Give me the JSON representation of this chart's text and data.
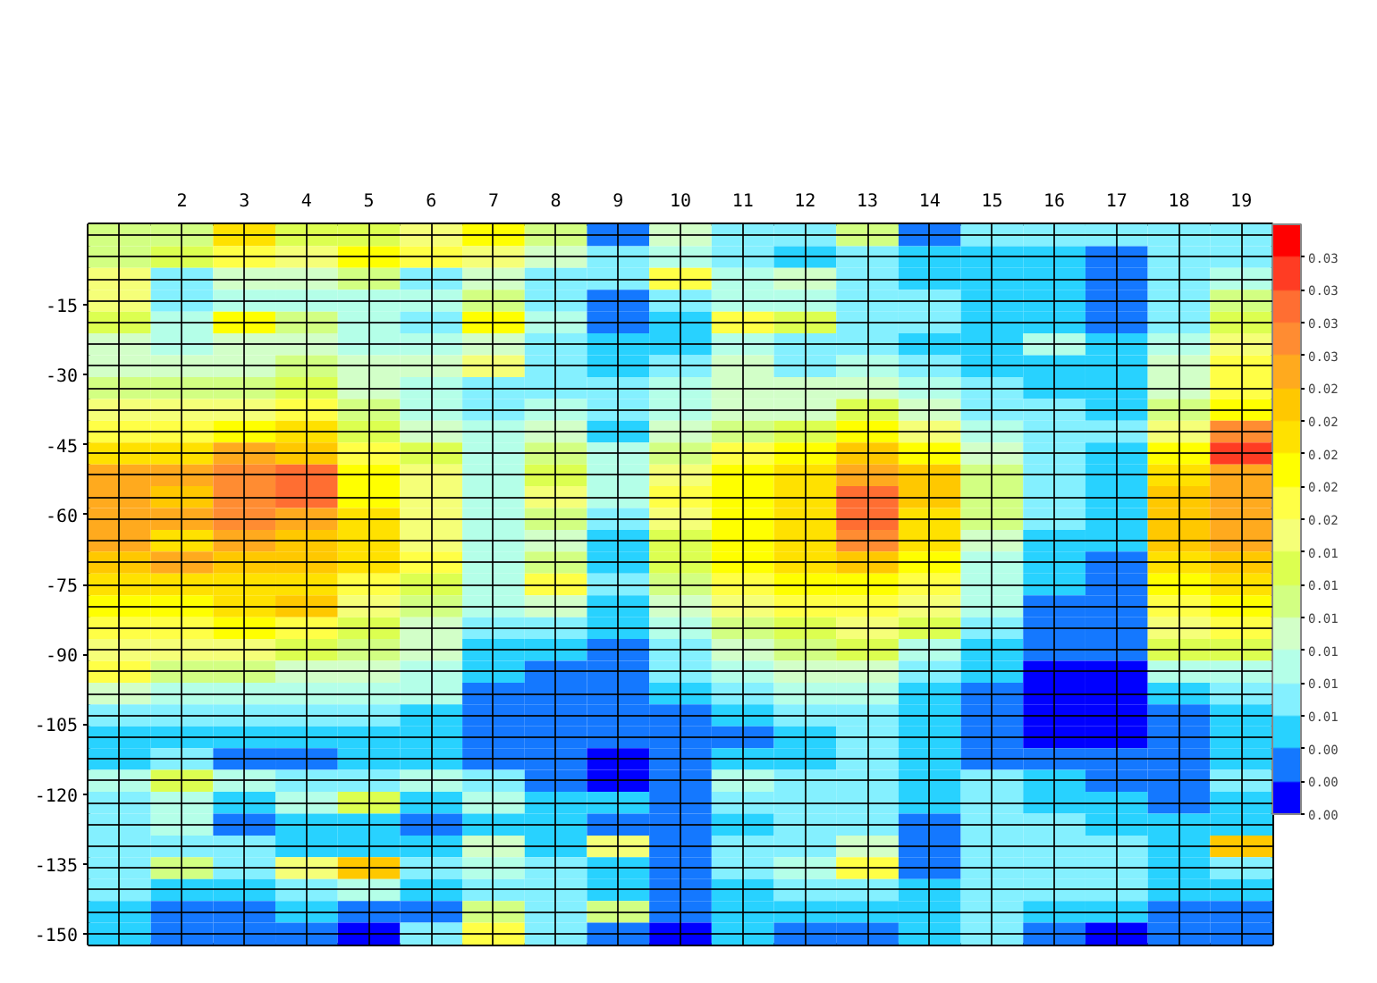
{
  "chart_data": {
    "type": "heatmap",
    "x": [
      1,
      2,
      3,
      4,
      5,
      6,
      7,
      8,
      9,
      10,
      11,
      12,
      13,
      14,
      15,
      16,
      17,
      18,
      19
    ],
    "xlim": [
      0.5,
      19.5
    ],
    "xticks": [
      2,
      3,
      4,
      5,
      6,
      7,
      8,
      9,
      10,
      11,
      12,
      13,
      14,
      15,
      16,
      17,
      18,
      19
    ],
    "ylim": [
      -152.3,
      2.3
    ],
    "yticks": [
      -15,
      -30,
      -45,
      -60,
      -75,
      -90,
      -105,
      -120,
      -135,
      -150
    ],
    "grid": true,
    "colors": [
      "#0000ff",
      "#1478ff",
      "#28d2ff",
      "#84f0ff",
      "#b4ffe8",
      "#d2ffc8",
      "#d2ff82",
      "#dcff50",
      "#f5ff78",
      "#ffff46",
      "#ffff00",
      "#ffe100",
      "#ffc800",
      "#ffaa1e",
      "#ff8c32",
      "#ff6e32",
      "#ff3c23",
      "#ff0000"
    ],
    "clim": [
      0.0005,
      0.0329
    ],
    "cticks": [
      {
        "value": 0.0005,
        "label": "0.00"
      },
      {
        "value": 0.0023,
        "label": "0.00"
      },
      {
        "value": 0.0041,
        "label": "0.00"
      },
      {
        "value": 0.0059,
        "label": "0.01"
      },
      {
        "value": 0.0077,
        "label": "0.01"
      },
      {
        "value": 0.0095,
        "label": "0.01"
      },
      {
        "value": 0.0113,
        "label": "0.01"
      },
      {
        "value": 0.0131,
        "label": "0.01"
      },
      {
        "value": 0.0149,
        "label": "0.01"
      },
      {
        "value": 0.0167,
        "label": "0.02"
      },
      {
        "value": 0.0185,
        "label": "0.02"
      },
      {
        "value": 0.0203,
        "label": "0.02"
      },
      {
        "value": 0.0221,
        "label": "0.02"
      },
      {
        "value": 0.0239,
        "label": "0.02"
      },
      {
        "value": 0.0257,
        "label": "0.03"
      },
      {
        "value": 0.0275,
        "label": "0.03"
      },
      {
        "value": 0.0293,
        "label": "0.03"
      },
      {
        "value": 0.0311,
        "label": "0.03"
      }
    ],
    "cells": [
      [
        0.0122,
        0.0122,
        0.0212,
        0.014,
        0.014,
        0.0158,
        0.0194,
        0.0122,
        0.0032,
        0.0104,
        0.0068,
        0.0068,
        0.0122,
        0.0032,
        0.0068,
        0.0068,
        0.0068,
        0.0068,
        0.0068
      ],
      [
        0.0122,
        0.014,
        0.0176,
        0.0158,
        0.0194,
        0.0176,
        0.0158,
        0.0104,
        0.0068,
        0.0086,
        0.0068,
        0.005,
        0.0068,
        0.005,
        0.005,
        0.005,
        0.0032,
        0.0068,
        0.0068
      ],
      [
        0.0158,
        0.0068,
        0.0104,
        0.0104,
        0.0122,
        0.0068,
        0.0104,
        0.0068,
        0.0068,
        0.0176,
        0.0086,
        0.0104,
        0.0068,
        0.005,
        0.005,
        0.005,
        0.0032,
        0.0068,
        0.0086
      ],
      [
        0.0158,
        0.0068,
        0.0086,
        0.0086,
        0.0086,
        0.0086,
        0.0122,
        0.0068,
        0.0032,
        0.0068,
        0.0086,
        0.0086,
        0.0068,
        0.0068,
        0.005,
        0.005,
        0.0032,
        0.0068,
        0.0122
      ],
      [
        0.014,
        0.0086,
        0.0194,
        0.0122,
        0.0086,
        0.0068,
        0.0194,
        0.0086,
        0.0032,
        0.005,
        0.0176,
        0.014,
        0.0068,
        0.0068,
        0.005,
        0.005,
        0.0032,
        0.0068,
        0.014
      ],
      [
        0.0104,
        0.0086,
        0.0104,
        0.0104,
        0.0086,
        0.0086,
        0.0104,
        0.0068,
        0.005,
        0.005,
        0.0086,
        0.0068,
        0.0068,
        0.005,
        0.005,
        0.0086,
        0.005,
        0.0086,
        0.0158
      ],
      [
        0.0104,
        0.0104,
        0.0104,
        0.0122,
        0.0104,
        0.0104,
        0.0158,
        0.0068,
        0.005,
        0.0068,
        0.0104,
        0.0068,
        0.0086,
        0.0068,
        0.005,
        0.005,
        0.005,
        0.0104,
        0.0176
      ],
      [
        0.0122,
        0.0122,
        0.0122,
        0.014,
        0.0104,
        0.0086,
        0.0068,
        0.0068,
        0.0068,
        0.0086,
        0.0104,
        0.0104,
        0.0104,
        0.0086,
        0.0068,
        0.005,
        0.005,
        0.0104,
        0.0176
      ],
      [
        0.0158,
        0.0158,
        0.0158,
        0.0176,
        0.0122,
        0.0086,
        0.0068,
        0.0086,
        0.0068,
        0.0086,
        0.0104,
        0.0104,
        0.014,
        0.0104,
        0.0068,
        0.0068,
        0.005,
        0.0122,
        0.0194
      ],
      [
        0.0176,
        0.0176,
        0.0194,
        0.0212,
        0.014,
        0.0104,
        0.0086,
        0.0104,
        0.005,
        0.0104,
        0.0122,
        0.014,
        0.0194,
        0.0158,
        0.0086,
        0.0068,
        0.0068,
        0.0158,
        0.0266
      ],
      [
        0.0212,
        0.0212,
        0.0248,
        0.023,
        0.0176,
        0.014,
        0.0086,
        0.0122,
        0.0086,
        0.0122,
        0.0176,
        0.0194,
        0.023,
        0.0194,
        0.0104,
        0.0068,
        0.005,
        0.0194,
        0.0302
      ],
      [
        0.0248,
        0.0248,
        0.0266,
        0.0284,
        0.0194,
        0.0158,
        0.0086,
        0.014,
        0.0086,
        0.0158,
        0.0194,
        0.0212,
        0.0248,
        0.023,
        0.0122,
        0.0068,
        0.005,
        0.0212,
        0.0248
      ],
      [
        0.0248,
        0.023,
        0.0266,
        0.0284,
        0.0194,
        0.0158,
        0.0086,
        0.0158,
        0.0086,
        0.0176,
        0.0194,
        0.0212,
        0.0284,
        0.023,
        0.0122,
        0.0068,
        0.005,
        0.023,
        0.0248
      ],
      [
        0.0248,
        0.0248,
        0.0266,
        0.0248,
        0.0212,
        0.0158,
        0.0086,
        0.0122,
        0.0068,
        0.0158,
        0.0194,
        0.0212,
        0.0284,
        0.0212,
        0.0122,
        0.0068,
        0.005,
        0.023,
        0.0248
      ],
      [
        0.0248,
        0.0212,
        0.0248,
        0.023,
        0.0212,
        0.0158,
        0.0086,
        0.0104,
        0.005,
        0.014,
        0.0194,
        0.0212,
        0.0266,
        0.0212,
        0.0104,
        0.005,
        0.005,
        0.023,
        0.0248
      ],
      [
        0.023,
        0.0248,
        0.023,
        0.023,
        0.0212,
        0.0176,
        0.0086,
        0.0122,
        0.005,
        0.014,
        0.0194,
        0.0212,
        0.023,
        0.0194,
        0.0086,
        0.005,
        0.0032,
        0.0212,
        0.023
      ],
      [
        0.0212,
        0.0212,
        0.0212,
        0.0212,
        0.0176,
        0.014,
        0.0086,
        0.0176,
        0.0068,
        0.0122,
        0.0176,
        0.0194,
        0.0194,
        0.0176,
        0.0086,
        0.005,
        0.0032,
        0.0194,
        0.0212
      ],
      [
        0.0194,
        0.0194,
        0.0212,
        0.023,
        0.0158,
        0.0122,
        0.0086,
        0.0104,
        0.005,
        0.0104,
        0.0158,
        0.0176,
        0.0176,
        0.0158,
        0.0086,
        0.0032,
        0.0032,
        0.0176,
        0.0194
      ],
      [
        0.0176,
        0.0176,
        0.0194,
        0.0176,
        0.014,
        0.0104,
        0.0068,
        0.0068,
        0.005,
        0.0086,
        0.0122,
        0.014,
        0.0158,
        0.014,
        0.0068,
        0.0032,
        0.0032,
        0.0158,
        0.0176
      ],
      [
        0.0158,
        0.0158,
        0.0158,
        0.014,
        0.0122,
        0.0104,
        0.005,
        0.005,
        0.0032,
        0.0068,
        0.0104,
        0.0122,
        0.014,
        0.0086,
        0.005,
        0.0032,
        0.0032,
        0.014,
        0.014
      ],
      [
        0.0176,
        0.0122,
        0.0122,
        0.0104,
        0.0104,
        0.0086,
        0.005,
        0.0032,
        0.0032,
        0.0068,
        0.0086,
        0.0104,
        0.0104,
        0.0068,
        0.005,
        0.0014,
        0.0014,
        0.0086,
        0.0086
      ],
      [
        0.0104,
        0.0086,
        0.0086,
        0.0086,
        0.0086,
        0.0086,
        0.0032,
        0.0032,
        0.0032,
        0.005,
        0.0068,
        0.0086,
        0.0086,
        0.005,
        0.0032,
        0.0014,
        0.0014,
        0.005,
        0.0068
      ],
      [
        0.0068,
        0.0068,
        0.0068,
        0.0068,
        0.0068,
        0.005,
        0.0032,
        0.0032,
        0.0032,
        0.0032,
        0.005,
        0.0068,
        0.0068,
        0.005,
        0.0032,
        0.0014,
        0.0014,
        0.0032,
        0.005
      ],
      [
        0.005,
        0.005,
        0.005,
        0.005,
        0.005,
        0.005,
        0.0032,
        0.0032,
        0.0032,
        0.0032,
        0.0032,
        0.005,
        0.0068,
        0.005,
        0.0032,
        0.0014,
        0.0014,
        0.0032,
        0.005
      ],
      [
        0.005,
        0.0068,
        0.0032,
        0.0032,
        0.005,
        0.005,
        0.0032,
        0.0032,
        0.0014,
        0.0032,
        0.005,
        0.005,
        0.0068,
        0.005,
        0.0032,
        0.0032,
        0.0032,
        0.0032,
        0.005
      ],
      [
        0.0086,
        0.014,
        0.0086,
        0.0068,
        0.0068,
        0.0086,
        0.0068,
        0.0032,
        0.0014,
        0.0032,
        0.0086,
        0.0068,
        0.0068,
        0.005,
        0.0068,
        0.005,
        0.0032,
        0.0032,
        0.0068
      ],
      [
        0.0068,
        0.0086,
        0.005,
        0.0086,
        0.014,
        0.005,
        0.0086,
        0.005,
        0.005,
        0.0032,
        0.0068,
        0.0068,
        0.0068,
        0.005,
        0.0068,
        0.005,
        0.005,
        0.0032,
        0.005
      ],
      [
        0.0068,
        0.0086,
        0.0032,
        0.005,
        0.005,
        0.0032,
        0.005,
        0.005,
        0.0032,
        0.0032,
        0.005,
        0.0068,
        0.0068,
        0.0032,
        0.0068,
        0.0068,
        0.005,
        0.005,
        0.005
      ],
      [
        0.0068,
        0.0068,
        0.0068,
        0.005,
        0.005,
        0.005,
        0.0104,
        0.005,
        0.0158,
        0.0032,
        0.0068,
        0.0068,
        0.0104,
        0.0032,
        0.0068,
        0.0068,
        0.0068,
        0.005,
        0.023
      ],
      [
        0.0068,
        0.0122,
        0.0068,
        0.0158,
        0.023,
        0.0068,
        0.0086,
        0.0068,
        0.005,
        0.0032,
        0.0068,
        0.0086,
        0.0176,
        0.0032,
        0.0068,
        0.0068,
        0.0068,
        0.005,
        0.0068
      ],
      [
        0.0068,
        0.005,
        0.005,
        0.0068,
        0.0086,
        0.005,
        0.0068,
        0.0068,
        0.005,
        0.0032,
        0.005,
        0.0068,
        0.0068,
        0.005,
        0.0068,
        0.0068,
        0.0068,
        0.005,
        0.005
      ],
      [
        0.005,
        0.0032,
        0.0032,
        0.005,
        0.0032,
        0.0032,
        0.0122,
        0.0068,
        0.0122,
        0.0032,
        0.005,
        0.005,
        0.005,
        0.005,
        0.0068,
        0.005,
        0.005,
        0.0032,
        0.0032
      ],
      [
        0.005,
        0.0032,
        0.0032,
        0.0032,
        0.0014,
        0.0068,
        0.0176,
        0.0068,
        0.0032,
        0.0014,
        0.005,
        0.0032,
        0.0032,
        0.005,
        0.0068,
        0.0032,
        0.0014,
        0.0032,
        0.0032
      ]
    ]
  }
}
